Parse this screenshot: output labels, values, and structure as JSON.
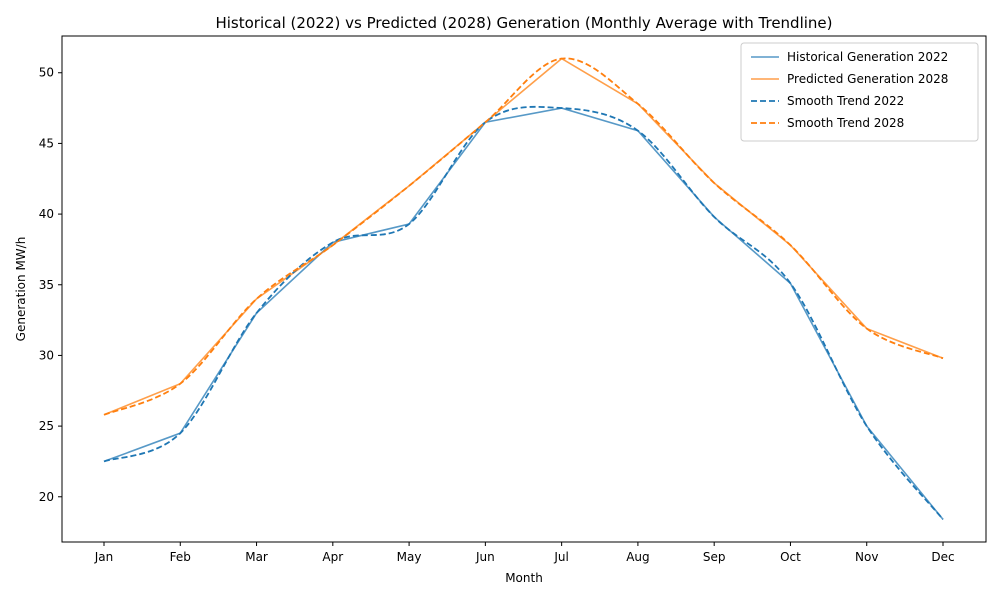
{
  "chart_data": {
    "type": "line",
    "title": "Historical (2022) vs Predicted (2028) Generation (Monthly Average with Trendline)",
    "xlabel": "Month",
    "ylabel": "Generation MW/h",
    "categories": [
      "Jan",
      "Feb",
      "Mar",
      "Apr",
      "May",
      "Jun",
      "Jul",
      "Aug",
      "Sep",
      "Oct",
      "Nov",
      "Dec"
    ],
    "ylim": [
      16.8,
      52.6
    ],
    "yticks": [
      20,
      25,
      30,
      35,
      40,
      45,
      50
    ],
    "grid": false,
    "legend_position": "top-right",
    "series": [
      {
        "name": "Historical Generation 2022",
        "style": "solid",
        "color": "#1f77b4",
        "values": [
          22.5,
          24.5,
          33.0,
          38.0,
          39.3,
          46.5,
          47.5,
          45.9,
          39.8,
          35.1,
          25.0,
          18.4
        ]
      },
      {
        "name": "Predicted Generation 2028",
        "style": "solid",
        "color": "#ff7f0e",
        "values": [
          25.8,
          28.0,
          34.0,
          37.8,
          42.0,
          46.5,
          51.0,
          47.8,
          42.2,
          37.8,
          31.9,
          29.8
        ]
      },
      {
        "name": "Smooth Trend 2022",
        "style": "dashed",
        "color": "#1f77b4",
        "values": [
          22.5,
          24.5,
          33.0,
          38.0,
          39.3,
          46.5,
          47.5,
          45.9,
          39.8,
          35.1,
          25.0,
          18.4
        ]
      },
      {
        "name": "Smooth Trend 2028",
        "style": "dashed",
        "color": "#ff7f0e",
        "values": [
          25.8,
          28.0,
          34.0,
          37.8,
          42.0,
          46.5,
          51.0,
          47.8,
          42.2,
          37.8,
          31.9,
          29.8
        ]
      }
    ]
  }
}
